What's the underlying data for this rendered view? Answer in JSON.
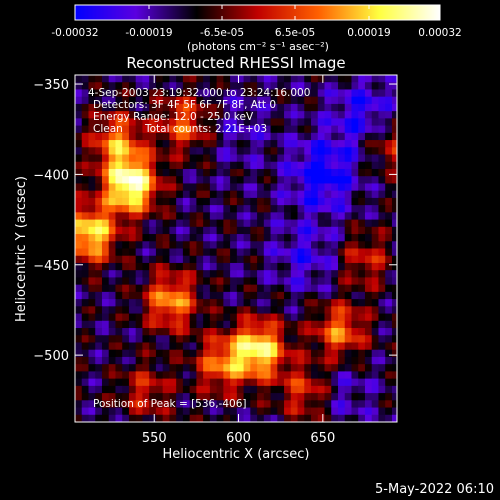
{
  "chart_data": {
    "type": "heatmap",
    "title": "Reconstructed RHESSI Image",
    "xlabel": "Heliocentric X (arcsec)",
    "ylabel": "Heliocentric Y (arcsec)",
    "xlim": [
      503,
      694
    ],
    "ylim": [
      -537,
      -345
    ],
    "x_ticks": [
      550,
      600,
      650
    ],
    "y_ticks": [
      -350,
      -400,
      -450,
      -500
    ],
    "colorbar": {
      "ticks": [
        "-0.00032",
        "-0.00019",
        "-6.5e-05",
        "6.5e-05",
        "0.00019",
        "0.00032"
      ],
      "range": [
        -0.00032,
        0.00032
      ],
      "unit_label": "(photons cm⁻² s⁻¹ asec⁻²)",
      "colors": [
        "#0000ff",
        "#5a00e0",
        "#000000",
        "#c00000",
        "#ff6000",
        "#ffff40",
        "#ffffff"
      ]
    },
    "annotations": {
      "time_range": "4-Sep-2003 23:19:32.000 to 23:24:16.000",
      "detectors": "Detectors: 3F 4F 5F 6F 7F 8F, Att 0",
      "energy_range": "Energy Range: 12.0 - 25.0 keV",
      "method": "Clean",
      "total_counts": "Total counts: 2.21E+03",
      "peak": "Position of Peak = [536,-406]"
    },
    "sources": [
      {
        "x": 536,
        "y": -406,
        "value": 0.00032
      },
      {
        "x": 512,
        "y": -433,
        "value": 0.00026
      },
      {
        "x": 528,
        "y": -382,
        "value": 0.00018
      },
      {
        "x": 568,
        "y": -372,
        "value": 0.00016
      },
      {
        "x": 560,
        "y": -470,
        "value": 0.0002
      },
      {
        "x": 612,
        "y": -497,
        "value": 0.00027
      },
      {
        "x": 590,
        "y": -505,
        "value": 0.00017
      },
      {
        "x": 660,
        "y": -487,
        "value": 0.00018
      },
      {
        "x": 640,
        "y": -520,
        "value": 0.00014
      },
      {
        "x": 690,
        "y": -383,
        "value": 0.00012
      },
      {
        "x": 675,
        "y": -447,
        "value": 0.00011
      },
      {
        "x": 545,
        "y": -520,
        "value": 0.00011
      }
    ],
    "minima": [
      {
        "x": 650,
        "y": -400,
        "value": -0.00028
      },
      {
        "x": 675,
        "y": -367,
        "value": -0.00022
      },
      {
        "x": 600,
        "y": -375,
        "value": -0.0001
      },
      {
        "x": 640,
        "y": -445,
        "value": -0.00016
      },
      {
        "x": 660,
        "y": -520,
        "value": -0.00012
      }
    ]
  },
  "footer": {
    "date": "5-May-2022 06:10"
  }
}
